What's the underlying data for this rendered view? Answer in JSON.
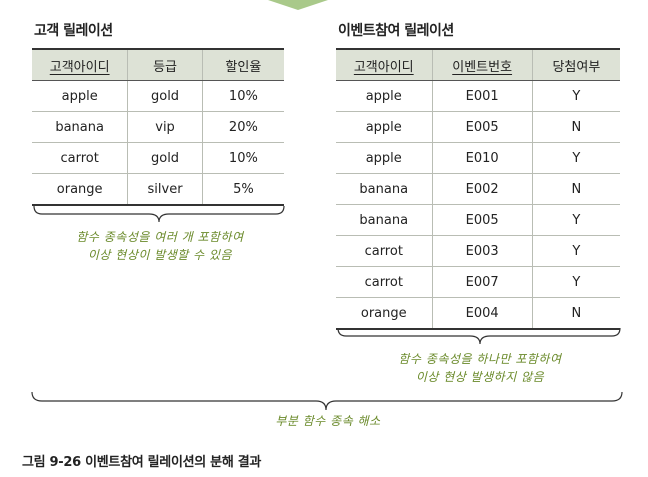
{
  "customer_relation": {
    "title": "고객 릴레이션",
    "headers": [
      "고객아이디",
      "등급",
      "할인율"
    ],
    "rows": [
      [
        "apple",
        "gold",
        "10%"
      ],
      [
        "banana",
        "vip",
        "20%"
      ],
      [
        "carrot",
        "gold",
        "10%"
      ],
      [
        "orange",
        "silver",
        "5%"
      ]
    ],
    "note_lines": [
      "함수 종속성을 여러 개 포함하여",
      "이상 현상이 발생할 수 있음"
    ]
  },
  "event_relation": {
    "title": "이벤트참여 릴레이션",
    "headers": [
      "고객아이디",
      "이벤트번호",
      "당첨여부"
    ],
    "rows": [
      [
        "apple",
        "E001",
        "Y"
      ],
      [
        "apple",
        "E005",
        "N"
      ],
      [
        "apple",
        "E010",
        "Y"
      ],
      [
        "banana",
        "E002",
        "N"
      ],
      [
        "banana",
        "E005",
        "Y"
      ],
      [
        "carrot",
        "E003",
        "Y"
      ],
      [
        "carrot",
        "E007",
        "Y"
      ],
      [
        "orange",
        "E004",
        "N"
      ]
    ],
    "note_lines": [
      "함수 종속성을 하나만 포함하여",
      "이상 현상 발생하지 않음"
    ]
  },
  "bottom_note": "부분 함수 종속 해소",
  "caption": "그림 9-26  이벤트참여 릴레이션의 분해 결과"
}
